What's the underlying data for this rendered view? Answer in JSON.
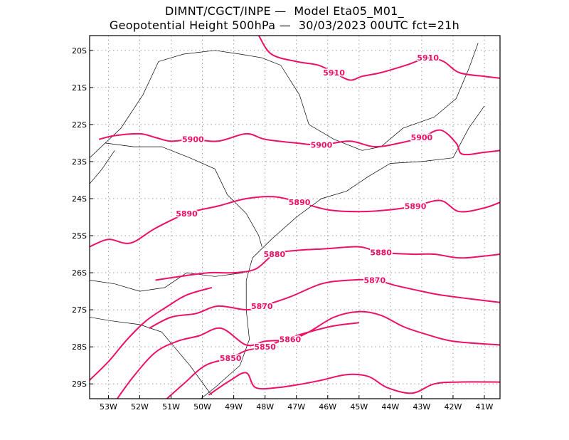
{
  "header": {
    "line1": "DIMNT/CGCT/INPE —  Model Eta05_M01_",
    "line2": "Geopotential Height 500hPa —  30/03/2023 00UTC fct=21h"
  },
  "map": {
    "lat_labels": [
      "20S",
      "21S",
      "22S",
      "23S",
      "24S",
      "25S",
      "26S",
      "27S",
      "28S",
      "29S"
    ],
    "lon_labels": [
      "53W",
      "52W",
      "51W",
      "50W",
      "49W",
      "48W",
      "47W",
      "46W",
      "45W",
      "44W",
      "43W",
      "42W",
      "41W"
    ],
    "lat_range": [
      -29.4,
      -19.6
    ],
    "lon_range": [
      -53.6,
      -40.5
    ],
    "contour_color": "#ee0f66",
    "border_color": "#000000",
    "grid": true
  },
  "contours": [
    {
      "value": 5910,
      "labels": [
        "5910",
        "5910"
      ],
      "points": [
        [
          -48.2,
          -19.6
        ],
        [
          -47.8,
          -20.1
        ],
        [
          -47,
          -20.3
        ],
        [
          -46.3,
          -20.4
        ],
        [
          -45.8,
          -20.6
        ],
        [
          -45.3,
          -20.8
        ],
        [
          -44.9,
          -20.7
        ],
        [
          -44.3,
          -20.6
        ],
        [
          -43.5,
          -20.4
        ],
        [
          -42.8,
          -20.2
        ],
        [
          -42.3,
          -20.3
        ],
        [
          -41.8,
          -20.6
        ],
        [
          -41,
          -20.7
        ],
        [
          -40.5,
          -20.75
        ]
      ]
    },
    {
      "value": 5900,
      "labels": [
        "5900",
        "5900",
        "5900"
      ],
      "points": [
        [
          -53.3,
          -22.4
        ],
        [
          -52.8,
          -22.3
        ],
        [
          -52,
          -22.25
        ],
        [
          -51.5,
          -22.35
        ],
        [
          -51,
          -22.45
        ],
        [
          -50.3,
          -22.4
        ],
        [
          -49.5,
          -22.45
        ],
        [
          -48.6,
          -22.25
        ],
        [
          -48,
          -22.4
        ],
        [
          -47,
          -22.5
        ],
        [
          -46.2,
          -22.55
        ],
        [
          -45.3,
          -22.45
        ],
        [
          -44.5,
          -22.6
        ],
        [
          -43.7,
          -22.5
        ],
        [
          -43,
          -22.35
        ],
        [
          -42.4,
          -22.15
        ],
        [
          -41.9,
          -22.5
        ],
        [
          -41.7,
          -22.8
        ],
        [
          -41,
          -22.75
        ],
        [
          -40.5,
          -22.7
        ]
      ]
    },
    {
      "value": 5890,
      "labels": [
        "5890",
        "5890",
        "5890"
      ],
      "points": [
        [
          -53.6,
          -25.3
        ],
        [
          -53,
          -25.1
        ],
        [
          -52.3,
          -25.2
        ],
        [
          -51.5,
          -24.8
        ],
        [
          -50.5,
          -24.4
        ],
        [
          -49.5,
          -24.2
        ],
        [
          -48.6,
          -24
        ],
        [
          -47.7,
          -23.95
        ],
        [
          -46.9,
          -24.1
        ],
        [
          -46,
          -24.3
        ],
        [
          -45,
          -24.35
        ],
        [
          -44,
          -24.3
        ],
        [
          -43.2,
          -24.2
        ],
        [
          -42.4,
          -24.05
        ],
        [
          -41.8,
          -24.35
        ],
        [
          -41,
          -24.25
        ],
        [
          -40.5,
          -24.1
        ]
      ]
    },
    {
      "value": 5880,
      "labels": [
        "5880",
        "5880"
      ],
      "points": [
        [
          -51.5,
          -26.2
        ],
        [
          -50.7,
          -26.1
        ],
        [
          -49.8,
          -26
        ],
        [
          -49,
          -26
        ],
        [
          -48.3,
          -25.9
        ],
        [
          -47.7,
          -25.5
        ],
        [
          -47,
          -25.4
        ],
        [
          -46,
          -25.35
        ],
        [
          -45,
          -25.3
        ],
        [
          -44.3,
          -25.45
        ],
        [
          -43.3,
          -25.5
        ],
        [
          -42.6,
          -25.5
        ],
        [
          -41.8,
          -25.6
        ],
        [
          -41,
          -25.55
        ],
        [
          -40.5,
          -25.5
        ]
      ]
    },
    {
      "value": 5870,
      "labels": [
        "5870",
        "5870"
      ],
      "points": [
        [
          -51.7,
          -27.5
        ],
        [
          -51,
          -27.2
        ],
        [
          -50.2,
          -27.1
        ],
        [
          -49.5,
          -26.9
        ],
        [
          -48.6,
          -27
        ],
        [
          -48.1,
          -26.9
        ],
        [
          -47.2,
          -26.65
        ],
        [
          -46.2,
          -26.3
        ],
        [
          -45.3,
          -26.2
        ],
        [
          -44.5,
          -26.2
        ],
        [
          -43.8,
          -26.35
        ],
        [
          -43,
          -26.5
        ],
        [
          -42.4,
          -26.6
        ],
        [
          -41.5,
          -26.7
        ],
        [
          -40.5,
          -26.8
        ]
      ]
    },
    {
      "value": 5860,
      "labels": [
        "5860"
      ],
      "points": [
        [
          -52.8,
          -29.5
        ],
        [
          -52.2,
          -28.8
        ],
        [
          -51.5,
          -28.15
        ],
        [
          -50.8,
          -27.85
        ],
        [
          -50.1,
          -27.7
        ],
        [
          -49.4,
          -27.5
        ],
        [
          -48.6,
          -27.95
        ],
        [
          -48,
          -27.85
        ],
        [
          -47.2,
          -27.8
        ],
        [
          -46.6,
          -27.6
        ],
        [
          -45.8,
          -27.2
        ],
        [
          -45,
          -27.05
        ],
        [
          -44.3,
          -27.15
        ],
        [
          -43.6,
          -27.45
        ],
        [
          -42.9,
          -27.65
        ],
        [
          -42,
          -27.85
        ],
        [
          -40.5,
          -27.95
        ]
      ]
    },
    {
      "value": 5850,
      "labels": [
        "5850",
        "5850"
      ],
      "points": [
        [
          -51.2,
          -29.45
        ],
        [
          -50.6,
          -29
        ],
        [
          -49.9,
          -28.5
        ],
        [
          -49.1,
          -28.3
        ],
        [
          -48.6,
          -28.1
        ],
        [
          -48,
          -28
        ],
        [
          -47.2,
          -27.75
        ],
        [
          -45.9,
          -27.45
        ],
        [
          -45,
          -27.35
        ]
      ]
    },
    {
      "value": 5850,
      "labels": [],
      "points": [
        [
          -49.8,
          -29.3
        ],
        [
          -49.1,
          -28.9
        ],
        [
          -48.6,
          -28.7
        ],
        [
          -48.3,
          -29.1
        ],
        [
          -47.6,
          -29.1
        ],
        [
          -46.8,
          -29
        ],
        [
          -46.2,
          -28.9
        ],
        [
          -45.4,
          -28.75
        ],
        [
          -44.7,
          -28.8
        ],
        [
          -44.1,
          -29.1
        ],
        [
          -43.3,
          -29.25
        ],
        [
          -42.6,
          -29
        ],
        [
          -41.8,
          -28.95
        ],
        [
          -40.5,
          -28.95
        ]
      ]
    },
    {
      "value": 5850,
      "labels": [],
      "points": [
        [
          -53.6,
          -28.9
        ],
        [
          -53,
          -28.4
        ],
        [
          -52.4,
          -27.8
        ],
        [
          -51.8,
          -27.3
        ],
        [
          -51.1,
          -26.9
        ],
        [
          -50.5,
          -26.6
        ],
        [
          -49.7,
          -26.4
        ]
      ]
    }
  ]
}
